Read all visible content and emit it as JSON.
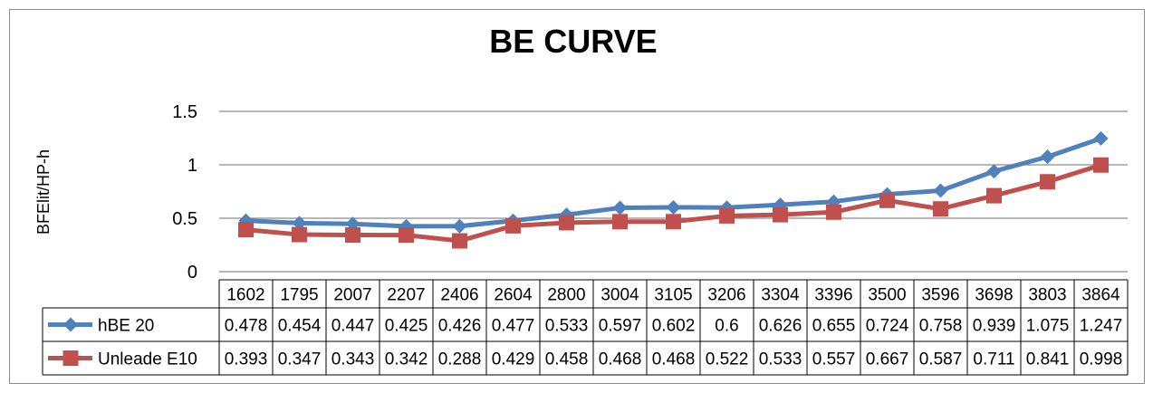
{
  "chart_data": {
    "type": "line",
    "title": "BE CURVE",
    "ylabel": "BFElit/HP-h",
    "xlabel": "",
    "ylim": [
      0,
      1.5
    ],
    "yticks": [
      "0",
      "0.5",
      "1",
      "1.5"
    ],
    "grid": true,
    "legend": "data-table-left",
    "categories": [
      "1602",
      "1795",
      "2007",
      "2207",
      "2406",
      "2604",
      "2800",
      "3004",
      "3105",
      "3206",
      "3304",
      "3396",
      "3500",
      "3596",
      "3698",
      "3803",
      "3864"
    ],
    "series": [
      {
        "name": "hBE 20",
        "color": "#4F81BD",
        "marker": "diamond",
        "values": [
          0.478,
          0.454,
          0.447,
          0.425,
          0.426,
          0.477,
          0.533,
          0.597,
          0.602,
          0.6,
          0.626,
          0.655,
          0.724,
          0.758,
          0.939,
          1.075,
          1.247
        ],
        "labels": [
          "0.478",
          "0.454",
          "0.447",
          "0.425",
          "0.426",
          "0.477",
          "0.533",
          "0.597",
          "0.602",
          "0.6",
          "0.626",
          "0.655",
          "0.724",
          "0.758",
          "0.939",
          "1.075",
          "1.247"
        ]
      },
      {
        "name": "Unleade E10",
        "color": "#C0504D",
        "marker": "square",
        "values": [
          0.393,
          0.347,
          0.343,
          0.342,
          0.288,
          0.429,
          0.458,
          0.468,
          0.468,
          0.522,
          0.533,
          0.557,
          0.667,
          0.587,
          0.711,
          0.841,
          0.998
        ],
        "labels": [
          "0.393",
          "0.347",
          "0.343",
          "0.342",
          "0.288",
          "0.429",
          "0.458",
          "0.468",
          "0.468",
          "0.522",
          "0.533",
          "0.557",
          "0.667",
          "0.587",
          "0.711",
          "0.841",
          "0.998"
        ]
      }
    ]
  }
}
